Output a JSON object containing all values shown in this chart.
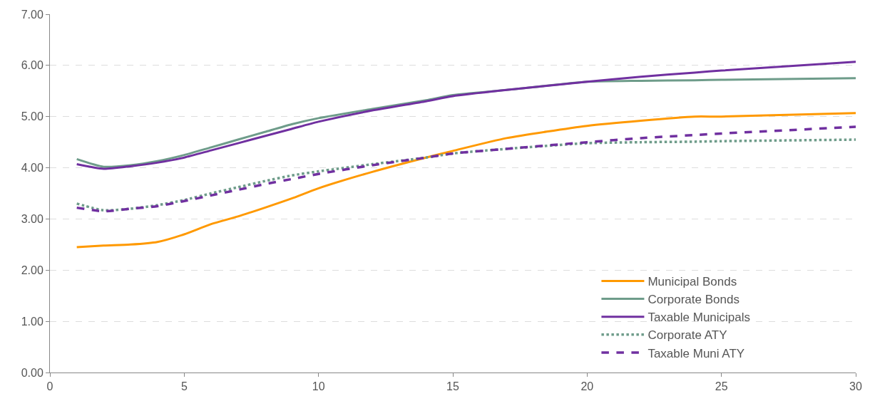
{
  "chart_data": {
    "type": "line",
    "x": [
      1,
      2,
      3,
      4,
      5,
      6,
      7,
      8,
      9,
      10,
      12,
      14,
      15,
      17,
      20,
      22,
      24,
      25,
      30
    ],
    "series": [
      {
        "name": "Municipal Bonds",
        "color": "#ff9900",
        "line_style": "solid",
        "values": [
          2.45,
          2.48,
          2.5,
          2.55,
          2.7,
          2.9,
          3.05,
          3.22,
          3.4,
          3.6,
          3.92,
          4.2,
          4.33,
          4.58,
          4.82,
          4.92,
          5.0,
          5.0,
          5.07
        ]
      },
      {
        "name": "Corporate Bonds",
        "color": "#6e9c8a",
        "line_style": "solid",
        "values": [
          4.17,
          4.02,
          4.05,
          4.13,
          4.25,
          4.4,
          4.55,
          4.7,
          4.85,
          4.97,
          5.15,
          5.32,
          5.42,
          5.52,
          5.68,
          5.7,
          5.71,
          5.72,
          5.75
        ]
      },
      {
        "name": "Taxable Municipals",
        "color": "#7030a0",
        "line_style": "solid",
        "values": [
          4.07,
          3.98,
          4.03,
          4.1,
          4.2,
          4.34,
          4.48,
          4.62,
          4.76,
          4.9,
          5.12,
          5.3,
          5.4,
          5.52,
          5.68,
          5.78,
          5.86,
          5.9,
          6.07
        ]
      },
      {
        "name": "Corporate ATY",
        "color": "#6e9c8a",
        "line_style": "dotted",
        "values": [
          3.3,
          3.17,
          3.2,
          3.27,
          3.37,
          3.5,
          3.62,
          3.74,
          3.85,
          3.93,
          4.07,
          4.2,
          4.28,
          4.37,
          4.48,
          4.5,
          4.51,
          4.52,
          4.55
        ]
      },
      {
        "name": "Taxable Muni ATY",
        "color": "#7030a0",
        "line_style": "dashed",
        "values": [
          3.22,
          3.15,
          3.2,
          3.25,
          3.35,
          3.46,
          3.57,
          3.68,
          3.78,
          3.88,
          4.05,
          4.2,
          4.28,
          4.37,
          4.5,
          4.58,
          4.64,
          4.67,
          4.8
        ]
      }
    ],
    "xlim": [
      0,
      30
    ],
    "xticks": [
      0,
      5,
      10,
      15,
      20,
      25,
      30
    ],
    "ylim": [
      0,
      7
    ],
    "yticks": [
      {
        "value": 0,
        "label": "0.00"
      },
      {
        "value": 1,
        "label": "1.00"
      },
      {
        "value": 2,
        "label": "2.00"
      },
      {
        "value": 3,
        "label": "3.00"
      },
      {
        "value": 4,
        "label": "4.00"
      },
      {
        "value": 5,
        "label": "5.00"
      },
      {
        "value": 6,
        "label": "6.00"
      },
      {
        "value": 7,
        "label": "7.00"
      }
    ],
    "grid": "y",
    "legend": "bottom right",
    "marker": "none"
  }
}
